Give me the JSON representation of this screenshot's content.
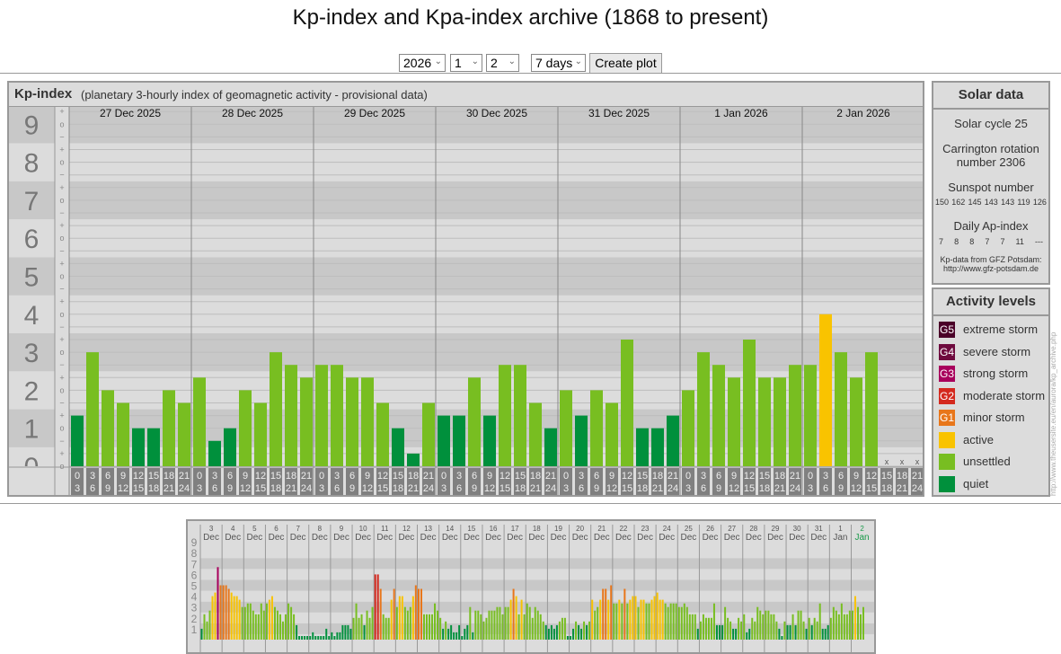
{
  "title": "Kp-index and Kpa-index archive (1868 to present)",
  "controls": {
    "year": "2026",
    "month": "1",
    "day": "2",
    "range": "7 days",
    "create_label": "Create plot"
  },
  "main": {
    "heading": "Kp-index",
    "subheading": "(planetary 3-hourly index of geomagnetic activity - provisional data)"
  },
  "colors": {
    "quiet": "#00903c",
    "unsettled": "#78be21",
    "active": "#f9c300",
    "G1": "#e8761a",
    "G2": "#d4291e",
    "G3": "#a8005c",
    "G4": "#6e0a3e",
    "G5": "#4a0028"
  },
  "chart_data": [
    {
      "type": "bar",
      "title": "Kp-index",
      "ylabel": "Kp",
      "ylim": [
        0,
        9
      ],
      "y_ticks": [
        "0",
        "1",
        "2",
        "3",
        "4",
        "5",
        "6",
        "7",
        "8",
        "9"
      ],
      "sub_ticks": [
        "o",
        "+",
        "−",
        "o",
        "+",
        "−",
        "o",
        "+",
        "−",
        "o",
        "+",
        "−",
        "o",
        "+",
        "−",
        "o",
        "+",
        "−",
        "o",
        "+",
        "−",
        "o",
        "+",
        "−",
        "o",
        "+",
        "−",
        "o",
        "+"
      ],
      "hour_labels": [
        [
          "0",
          "3"
        ],
        [
          "3",
          "6"
        ],
        [
          "6",
          "9"
        ],
        [
          "9",
          "12"
        ],
        [
          "12",
          "15"
        ],
        [
          "15",
          "18"
        ],
        [
          "18",
          "21"
        ],
        [
          "21",
          "24"
        ]
      ],
      "missing_marker": "x",
      "days": [
        {
          "label": "27 Dec 2025",
          "kp": [
            1.33,
            3,
            2,
            1.67,
            1,
            1,
            2,
            1.67
          ]
        },
        {
          "label": "28 Dec 2025",
          "kp": [
            2.33,
            0.67,
            1,
            2,
            1.67,
            3,
            2.67,
            2.33
          ]
        },
        {
          "label": "29 Dec 2025",
          "kp": [
            2.67,
            2.67,
            2.33,
            2.33,
            1.67,
            1,
            0.33,
            1.67
          ]
        },
        {
          "label": "30 Dec 2025",
          "kp": [
            1.33,
            1.33,
            2.33,
            1.33,
            2.67,
            2.67,
            1.67,
            1
          ]
        },
        {
          "label": "31 Dec 2025",
          "kp": [
            2,
            1.33,
            2,
            1.67,
            3.33,
            1,
            1,
            1.33
          ]
        },
        {
          "label": "1 Jan 2026",
          "kp": [
            2,
            3,
            2.67,
            2.33,
            3.33,
            2.33,
            2.33,
            2.67
          ]
        },
        {
          "label": "2 Jan 2026",
          "kp": [
            2.67,
            4,
            3,
            2.33,
            3,
            null,
            null,
            null
          ]
        }
      ]
    },
    {
      "type": "bar",
      "title": "Kp-index last 31 days",
      "ylim": [
        0,
        9
      ],
      "y_ticks": [
        "1",
        "2",
        "3",
        "4",
        "5",
        "6",
        "7",
        "8",
        "9"
      ],
      "days": [
        {
          "d": "3",
          "m": "Dec",
          "kp": [
            1,
            2.33,
            1.67,
            2.67,
            4,
            4.33,
            6.67,
            5
          ]
        },
        {
          "d": "4",
          "m": "Dec",
          "kp": [
            5,
            5,
            4.67,
            4.33,
            4,
            4,
            3.67,
            3
          ]
        },
        {
          "d": "5",
          "m": "Dec",
          "kp": [
            3,
            3.33,
            3.33,
            2.67,
            2.33,
            2.33,
            3.33,
            2.67
          ]
        },
        {
          "d": "6",
          "m": "Dec",
          "kp": [
            3.33,
            3.67,
            4,
            3,
            2.67,
            2.33,
            1.67,
            2.33
          ]
        },
        {
          "d": "7",
          "m": "Dec",
          "kp": [
            3.33,
            3,
            2.33,
            1.33,
            0.33,
            0.33,
            0.33,
            0.33
          ]
        },
        {
          "d": "8",
          "m": "Dec",
          "kp": [
            0.33,
            0.67,
            0.33,
            0.33,
            0.33,
            0.33,
            1,
            0.33
          ]
        },
        {
          "d": "9",
          "m": "Dec",
          "kp": [
            0.67,
            0.33,
            0.67,
            0.67,
            1.33,
            1.33,
            1.33,
            1
          ]
        },
        {
          "d": "10",
          "m": "Dec",
          "kp": [
            2,
            3.33,
            2,
            2.33,
            1.33,
            2.67,
            2,
            3
          ]
        },
        {
          "d": "11",
          "m": "Dec",
          "kp": [
            6,
            6,
            4.67,
            2.33,
            2,
            2,
            3.67,
            4.67
          ]
        },
        {
          "d": "12",
          "m": "Dec",
          "kp": [
            3,
            4,
            4,
            3,
            2.67,
            3,
            4,
            5
          ]
        },
        {
          "d": "13",
          "m": "Dec",
          "kp": [
            4.67,
            4.67,
            2.33,
            2.33,
            2.33,
            2.33,
            3.33,
            2.67
          ]
        },
        {
          "d": "14",
          "m": "Dec",
          "kp": [
            2,
            1,
            1.67,
            1,
            1.33,
            0.67,
            0.67,
            1.33
          ]
        },
        {
          "d": "15",
          "m": "Dec",
          "kp": [
            0.33,
            1,
            1.33,
            3,
            0.67,
            2.67,
            2.67,
            2.33
          ]
        },
        {
          "d": "16",
          "m": "Dec",
          "kp": [
            1.67,
            2,
            2.67,
            2.67,
            2.67,
            3,
            3,
            2.33
          ]
        },
        {
          "d": "17",
          "m": "Dec",
          "kp": [
            3,
            3,
            3.67,
            4.67,
            4,
            2.33,
            3.67,
            2.33
          ]
        },
        {
          "d": "18",
          "m": "Dec",
          "kp": [
            3.33,
            3,
            2,
            3,
            2.67,
            2.33,
            1.67,
            1.33
          ]
        },
        {
          "d": "19",
          "m": "Dec",
          "kp": [
            1,
            1.33,
            1,
            1.33,
            1.67,
            2,
            2,
            0.33
          ]
        },
        {
          "d": "20",
          "m": "Dec",
          "kp": [
            0.33,
            1,
            1.67,
            1.33,
            1,
            1.67,
            1.33,
            1.67
          ]
        },
        {
          "d": "21",
          "m": "Dec",
          "kp": [
            3.67,
            2.67,
            3,
            3.67,
            4.67,
            4.67,
            3.67,
            5
          ]
        },
        {
          "d": "22",
          "m": "Dec",
          "kp": [
            3.33,
            3.33,
            3.67,
            3.33,
            4.67,
            3.33,
            3.67,
            4
          ]
        },
        {
          "d": "23",
          "m": "Dec",
          "kp": [
            4,
            3,
            3.67,
            3.67,
            3.33,
            3.33,
            3.67,
            4
          ]
        },
        {
          "d": "24",
          "m": "Dec",
          "kp": [
            4.33,
            3.67,
            3.67,
            3.33,
            3,
            3.33,
            3.33,
            3.33
          ]
        },
        {
          "d": "25",
          "m": "Dec",
          "kp": [
            3,
            3,
            3.33,
            3,
            2.33,
            2.33,
            2.33,
            1
          ]
        },
        {
          "d": "26",
          "m": "Dec",
          "kp": [
            1.67,
            2.33,
            2,
            2,
            2,
            3.33,
            1.33,
            1.33
          ]
        },
        {
          "d": "27",
          "m": "Dec",
          "kp": [
            1.33,
            3,
            2,
            1.67,
            1,
            1,
            2,
            1.67
          ]
        },
        {
          "d": "28",
          "m": "Dec",
          "kp": [
            2.33,
            0.67,
            1,
            2,
            1.67,
            3,
            2.67,
            2.33
          ]
        },
        {
          "d": "29",
          "m": "Dec",
          "kp": [
            2.67,
            2.67,
            2.33,
            2.33,
            1.67,
            1,
            0.33,
            1.67
          ]
        },
        {
          "d": "30",
          "m": "Dec",
          "kp": [
            1.33,
            1.33,
            2.33,
            1.33,
            2.67,
            2.67,
            1.67,
            1
          ]
        },
        {
          "d": "31",
          "m": "Dec",
          "kp": [
            2,
            1.33,
            2,
            1.67,
            3.33,
            1,
            1,
            1.33
          ]
        },
        {
          "d": "1",
          "m": "Jan",
          "kp": [
            2,
            3,
            2.67,
            2.33,
            3.33,
            2.33,
            2.33,
            2.67
          ]
        },
        {
          "d": "2",
          "m": "Jan",
          "kp": [
            2.67,
            4,
            3,
            2.33,
            3
          ],
          "current": true
        }
      ]
    }
  ],
  "solar": {
    "heading": "Solar data",
    "cycle": "Solar cycle 25",
    "carrington_1": "Carrington rotation",
    "carrington_2": "number 2306",
    "sunspot_label": "Sunspot number",
    "sunspots": [
      "150",
      "162",
      "145",
      "143",
      "143",
      "119",
      "126"
    ],
    "ap_label": "Daily Ap-index",
    "ap": [
      "7",
      "8",
      "8",
      "7",
      "7",
      "11",
      "---"
    ],
    "source_1": "Kp-data from GFZ Potsdam:",
    "source_2": "http://www.gfz-potsdam.de"
  },
  "activity": {
    "heading": "Activity levels",
    "levels": [
      {
        "badge": "G5",
        "label": "extreme storm",
        "color": "#4a0028"
      },
      {
        "badge": "G4",
        "label": "severe storm",
        "color": "#6e0a3e"
      },
      {
        "badge": "G3",
        "label": "strong storm",
        "color": "#a8005c"
      },
      {
        "badge": "G2",
        "label": "moderate storm",
        "color": "#d4291e"
      },
      {
        "badge": "G1",
        "label": "minor storm",
        "color": "#e8761a"
      },
      {
        "badge": "",
        "label": "active",
        "color": "#f9c300"
      },
      {
        "badge": "",
        "label": "unsettled",
        "color": "#78be21"
      },
      {
        "badge": "",
        "label": "quiet",
        "color": "#00903c"
      }
    ]
  },
  "vertical_url": "http://www.theusersite.eu/en/aurora/kp_archive.php"
}
